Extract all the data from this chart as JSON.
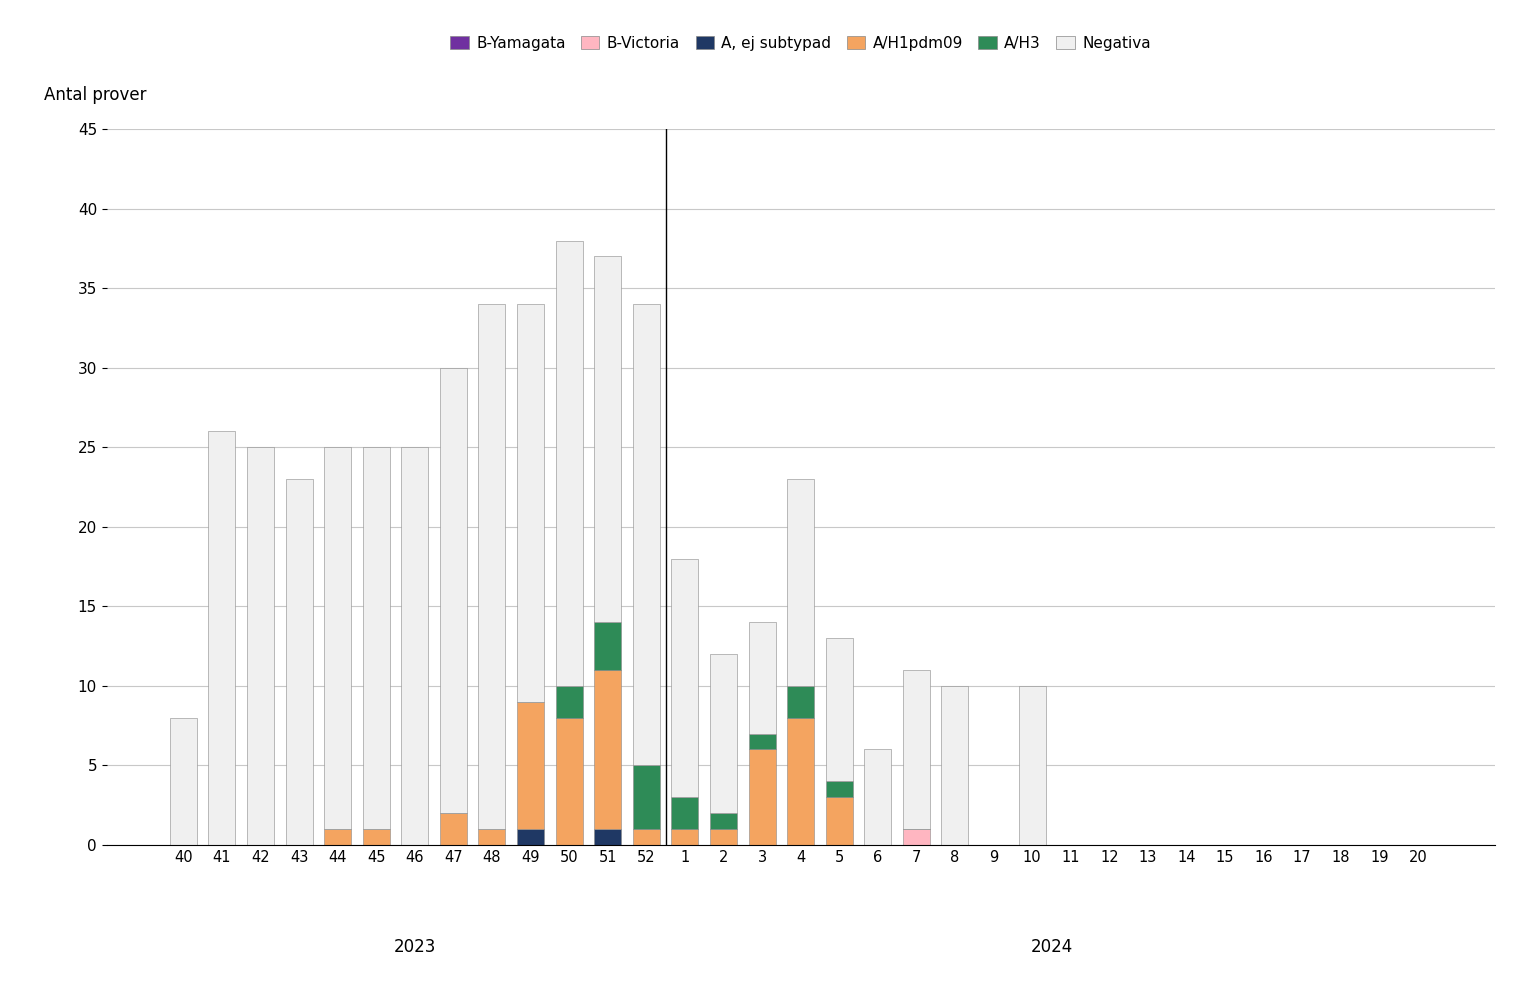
{
  "weeks": [
    "40",
    "41",
    "42",
    "43",
    "44",
    "45",
    "46",
    "47",
    "48",
    "49",
    "50",
    "51",
    "52",
    "1",
    "2",
    "3",
    "4",
    "5",
    "6",
    "7",
    "8",
    "9",
    "10",
    "11",
    "12",
    "13",
    "14",
    "15",
    "16",
    "17",
    "18",
    "19",
    "20"
  ],
  "divider_after_index": 12,
  "series": {
    "B_Yamagata": [
      0,
      0,
      0,
      0,
      0,
      0,
      0,
      0,
      0,
      0,
      0,
      0,
      0,
      0,
      0,
      0,
      0,
      0,
      0,
      0,
      0,
      0,
      0,
      0,
      0,
      0,
      0,
      0,
      0,
      0,
      0,
      0,
      0
    ],
    "B_Victoria": [
      0,
      0,
      0,
      0,
      0,
      0,
      0,
      0,
      0,
      0,
      0,
      0,
      0,
      0,
      0,
      0,
      0,
      0,
      0,
      1,
      0,
      0,
      0,
      0,
      0,
      0,
      0,
      0,
      0,
      0,
      0,
      0,
      0
    ],
    "A_ej_subtypad": [
      0,
      0,
      0,
      0,
      0,
      0,
      0,
      0,
      0,
      1,
      0,
      1,
      0,
      0,
      0,
      0,
      0,
      0,
      0,
      0,
      0,
      0,
      0,
      0,
      0,
      0,
      0,
      0,
      0,
      0,
      0,
      0,
      0
    ],
    "A_H1pdm09": [
      0,
      0,
      0,
      0,
      1,
      1,
      0,
      2,
      1,
      8,
      8,
      10,
      1,
      1,
      1,
      6,
      8,
      3,
      0,
      0,
      0,
      0,
      0,
      0,
      0,
      0,
      0,
      0,
      0,
      0,
      0,
      0,
      0
    ],
    "A_H3": [
      0,
      0,
      0,
      0,
      0,
      0,
      0,
      0,
      0,
      0,
      2,
      3,
      4,
      2,
      1,
      1,
      2,
      1,
      0,
      0,
      0,
      0,
      0,
      0,
      0,
      0,
      0,
      0,
      0,
      0,
      0,
      0,
      0
    ],
    "Negativa": [
      8,
      26,
      25,
      23,
      24,
      24,
      25,
      28,
      33,
      25,
      28,
      23,
      29,
      15,
      10,
      7,
      13,
      9,
      6,
      10,
      10,
      0,
      10,
      0,
      0,
      0,
      0,
      0,
      0,
      0,
      0,
      0,
      0
    ]
  },
  "colors": {
    "B_Yamagata": "#7030a0",
    "B_Victoria": "#ffb6c1",
    "A_ej_subtypad": "#1f3864",
    "A_H1pdm09": "#f4a460",
    "A_H3": "#2e8b57",
    "Negativa": "#f0f0f0"
  },
  "legend_labels": {
    "B_Yamagata": "B-Yamagata",
    "B_Victoria": "B-Victoria",
    "A_ej_subtypad": "A, ej subtypad",
    "A_H1pdm09": "A/H1pdm09",
    "A_H3": "A/H3",
    "Negativa": "Negativa"
  },
  "ylabel": "Antal prover",
  "ylim": [
    0,
    45
  ],
  "yticks": [
    0,
    5,
    10,
    15,
    20,
    25,
    30,
    35,
    40,
    45
  ],
  "background_color": "#ffffff",
  "grid_color": "#c8c8c8"
}
